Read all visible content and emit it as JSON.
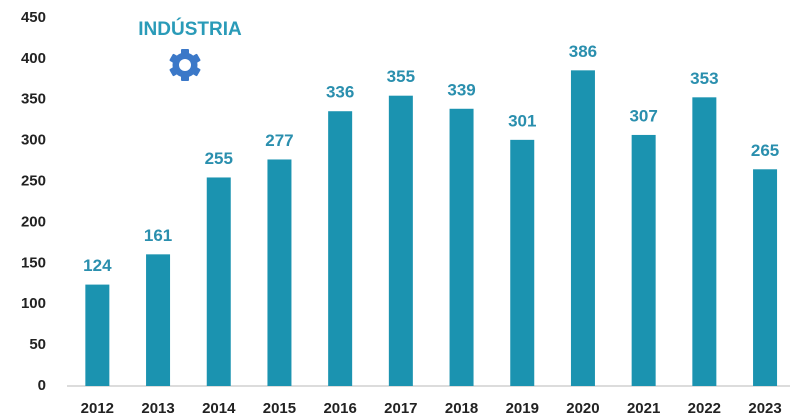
{
  "chart_data": {
    "type": "bar",
    "title": "INDÚSTRIA",
    "categories": [
      "2012",
      "2013",
      "2014",
      "2015",
      "2016",
      "2017",
      "2018",
      "2019",
      "2020",
      "2021",
      "2022",
      "2023"
    ],
    "values": [
      124,
      161,
      255,
      277,
      336,
      355,
      339,
      301,
      386,
      307,
      353,
      265
    ],
    "color": "#1b93b0",
    "ylim": [
      0,
      450
    ],
    "yticks": [
      0,
      50,
      100,
      150,
      200,
      250,
      300,
      350,
      400,
      450
    ],
    "grid": false
  }
}
